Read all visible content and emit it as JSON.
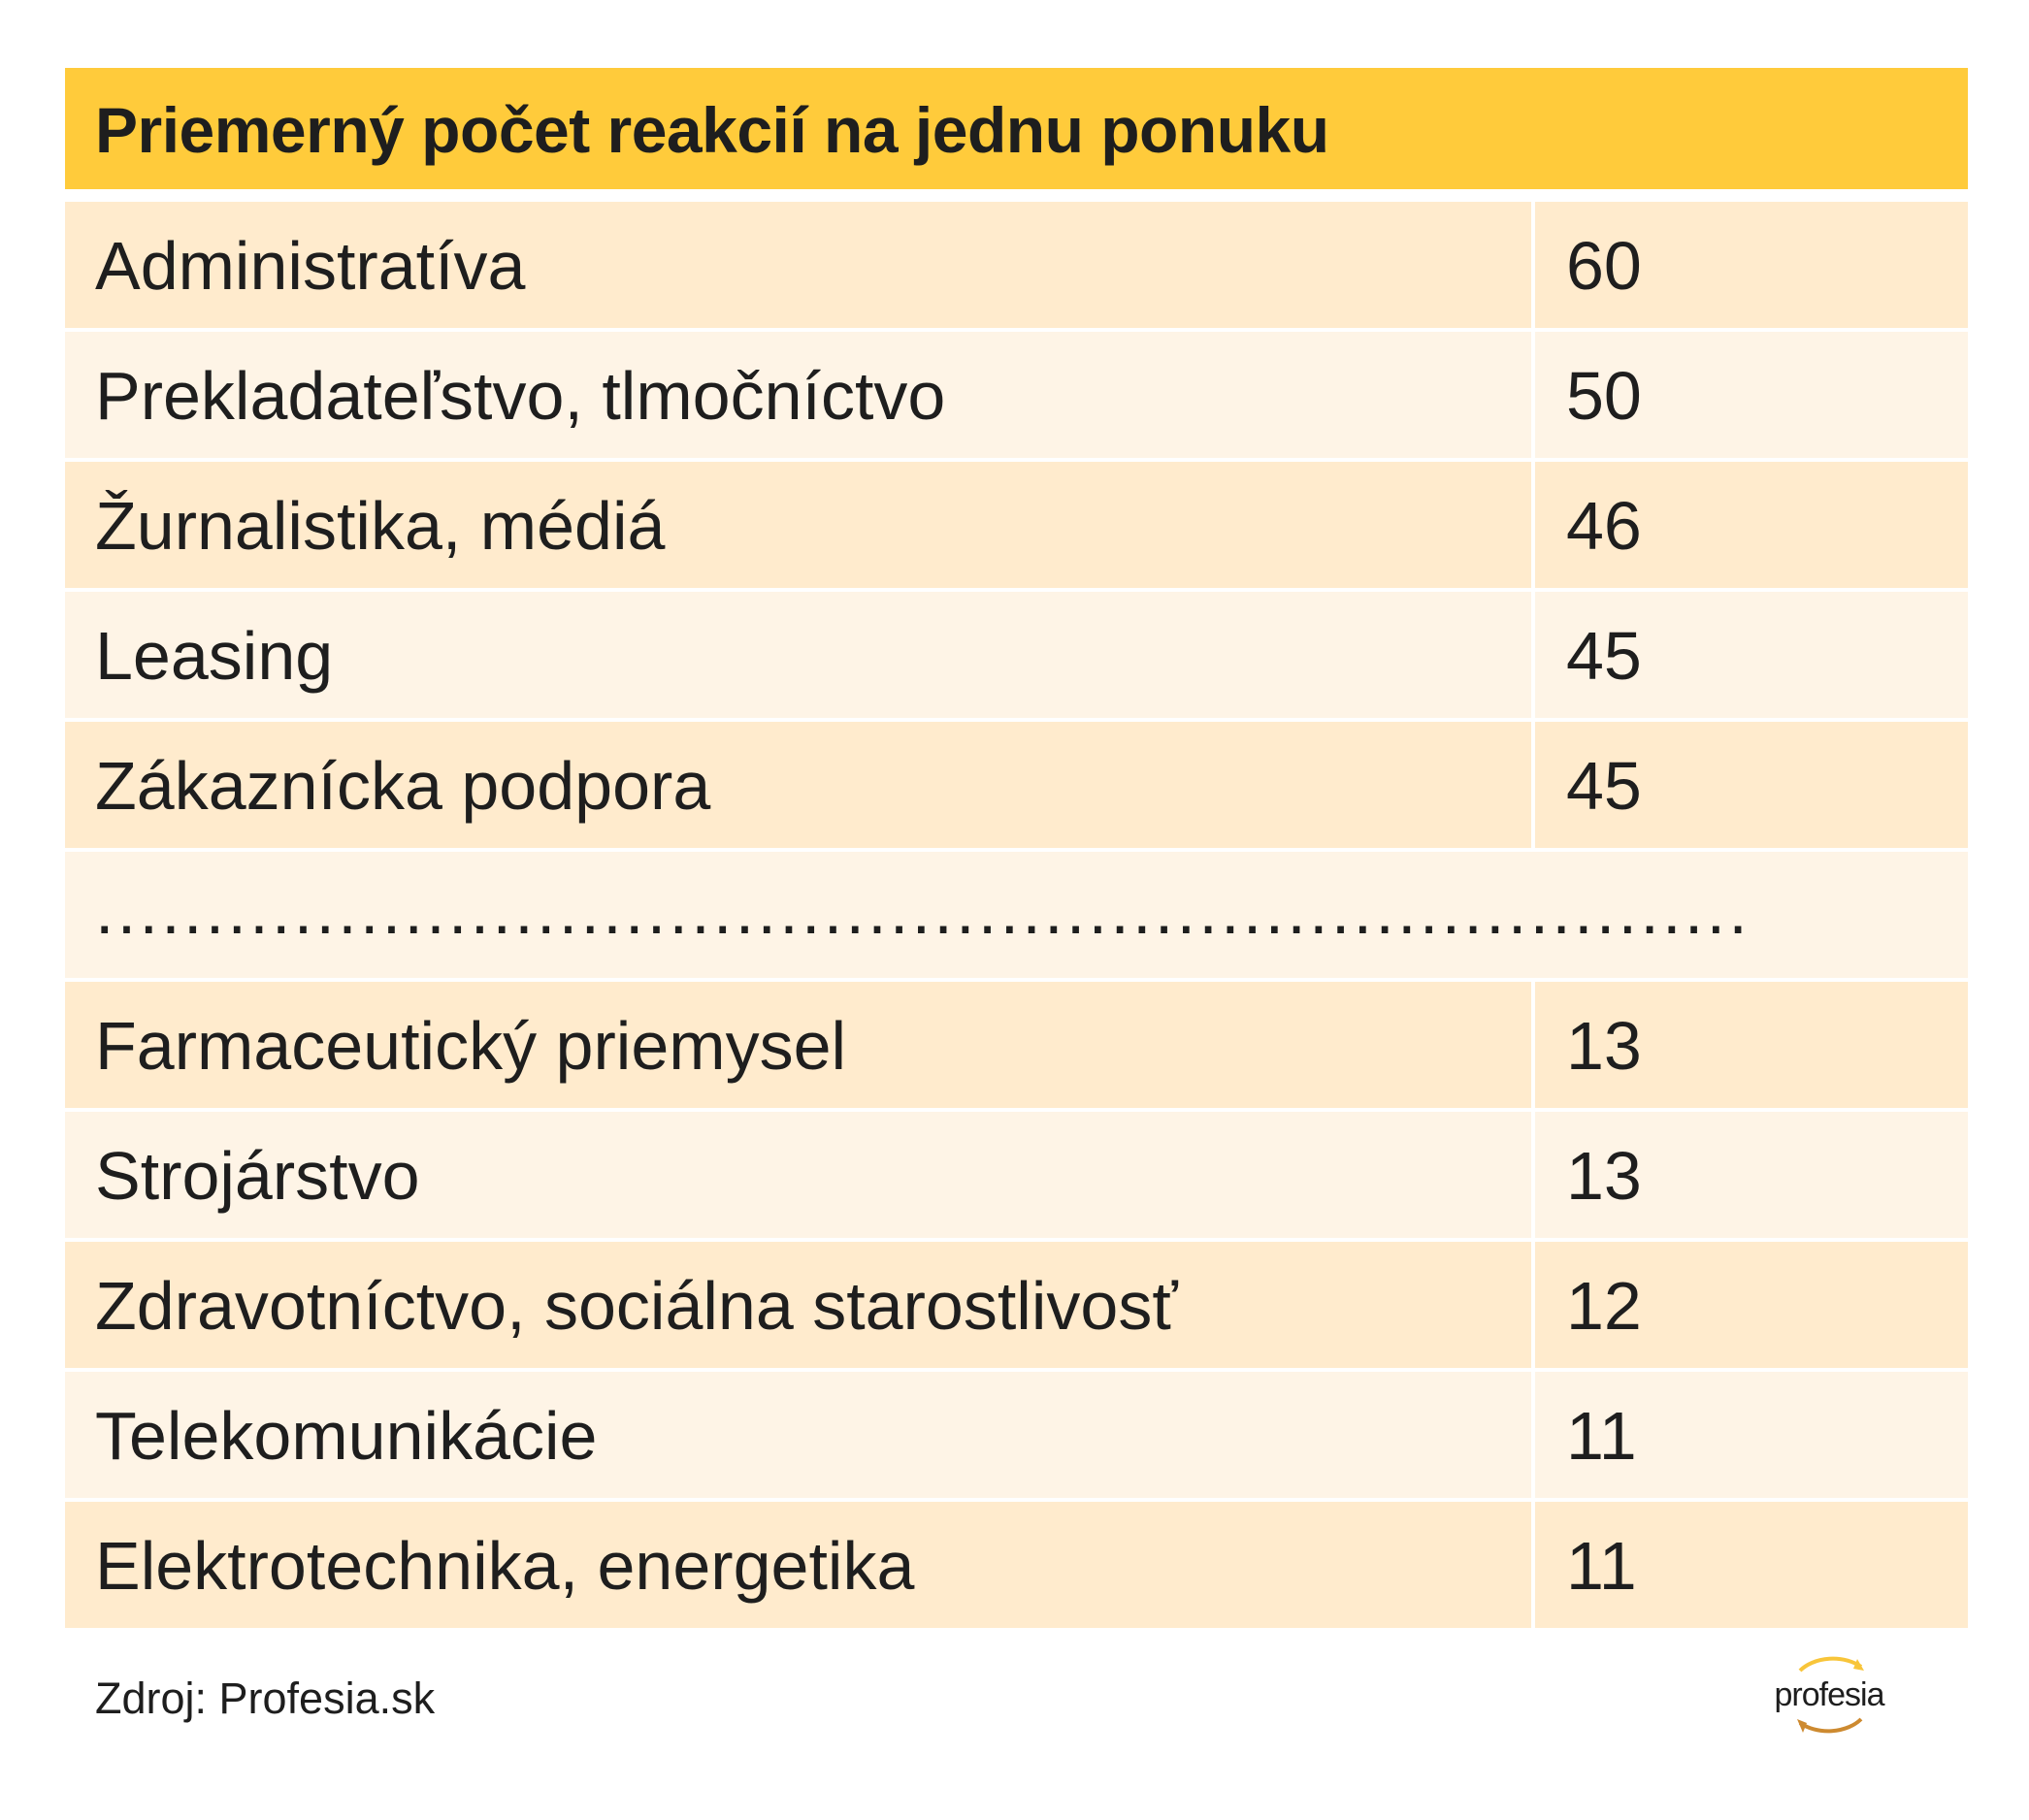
{
  "title": "Priemerný počet reakcií na jednu ponuku",
  "rows_top": [
    {
      "label": "Administratíva",
      "value": "60"
    },
    {
      "label": "Prekladateľstvo, tlmočníctvo",
      "value": "50"
    },
    {
      "label": "Žurnalistika, médiá",
      "value": "46"
    },
    {
      "label": "Leasing",
      "value": "45"
    },
    {
      "label": "Zákaznícka podpora",
      "value": "45"
    }
  ],
  "separator": "...........................................................................",
  "rows_bottom": [
    {
      "label": "Farmaceutický priemysel",
      "value": "13"
    },
    {
      "label": "Strojárstvo",
      "value": "13"
    },
    {
      "label": "Zdravotníctvo, sociálna starostlivosť",
      "value": "12"
    },
    {
      "label": "Telekomunikácie",
      "value": "11"
    },
    {
      "label": "Elektrotechnika, energetika",
      "value": "11"
    }
  ],
  "source": "Zdroj: Profesia.sk",
  "logo_text": "profesia",
  "colors": {
    "header": "#ffcb3b",
    "row_dark": "#ffebcd",
    "row_light": "#fef4e6"
  }
}
